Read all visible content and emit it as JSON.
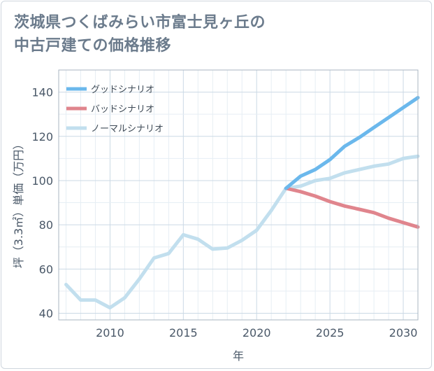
{
  "header": {
    "title_line1": "茨城県つくばみらい市富士見ヶ丘の",
    "title_line2": "中古戸建ての価格推移"
  },
  "chart_data": {
    "type": "line",
    "title": "茨城県つくばみらい市富士見ヶ丘の中古戸建ての価格推移",
    "xlabel": "年",
    "ylabel": "坪（3.3㎡）単価（万円）",
    "xlim": [
      2006.5,
      2031
    ],
    "ylim": [
      37,
      150
    ],
    "x_ticks": [
      2010,
      2015,
      2020,
      2025,
      2030
    ],
    "y_ticks": [
      40,
      60,
      80,
      100,
      120,
      140
    ],
    "grid": true,
    "legend_position": "top-left",
    "series": [
      {
        "name": "グッドシナリオ",
        "color": "#6bb8ec",
        "x": [
          2022,
          2023,
          2024,
          2025,
          2026,
          2027,
          2028,
          2029,
          2030,
          2031
        ],
        "y": [
          96.5,
          102,
          105,
          109.5,
          115.5,
          119.5,
          124,
          128.5,
          133,
          137.5
        ]
      },
      {
        "name": "バッドシナリオ",
        "color": "#e0858d",
        "x": [
          2022,
          2023,
          2024,
          2025,
          2026,
          2027,
          2028,
          2029,
          2030,
          2031
        ],
        "y": [
          96.5,
          95,
          93,
          90.5,
          88.5,
          87,
          85.5,
          83,
          81,
          79
        ]
      },
      {
        "name": "ノーマルシナリオ",
        "color": "#c2dfee",
        "x": [
          2007,
          2008,
          2009,
          2010,
          2011,
          2012,
          2013,
          2014,
          2015,
          2016,
          2017,
          2018,
          2019,
          2020,
          2021,
          2022,
          2023,
          2024,
          2025,
          2026,
          2027,
          2028,
          2029,
          2030,
          2031
        ],
        "y": [
          53,
          46,
          46,
          42.5,
          47,
          55.5,
          65,
          67,
          75.5,
          73.5,
          69,
          69.5,
          73,
          77.5,
          86.5,
          96.5,
          97.5,
          100,
          101,
          103.5,
          105,
          106.5,
          107.5,
          110,
          111
        ]
      }
    ]
  }
}
